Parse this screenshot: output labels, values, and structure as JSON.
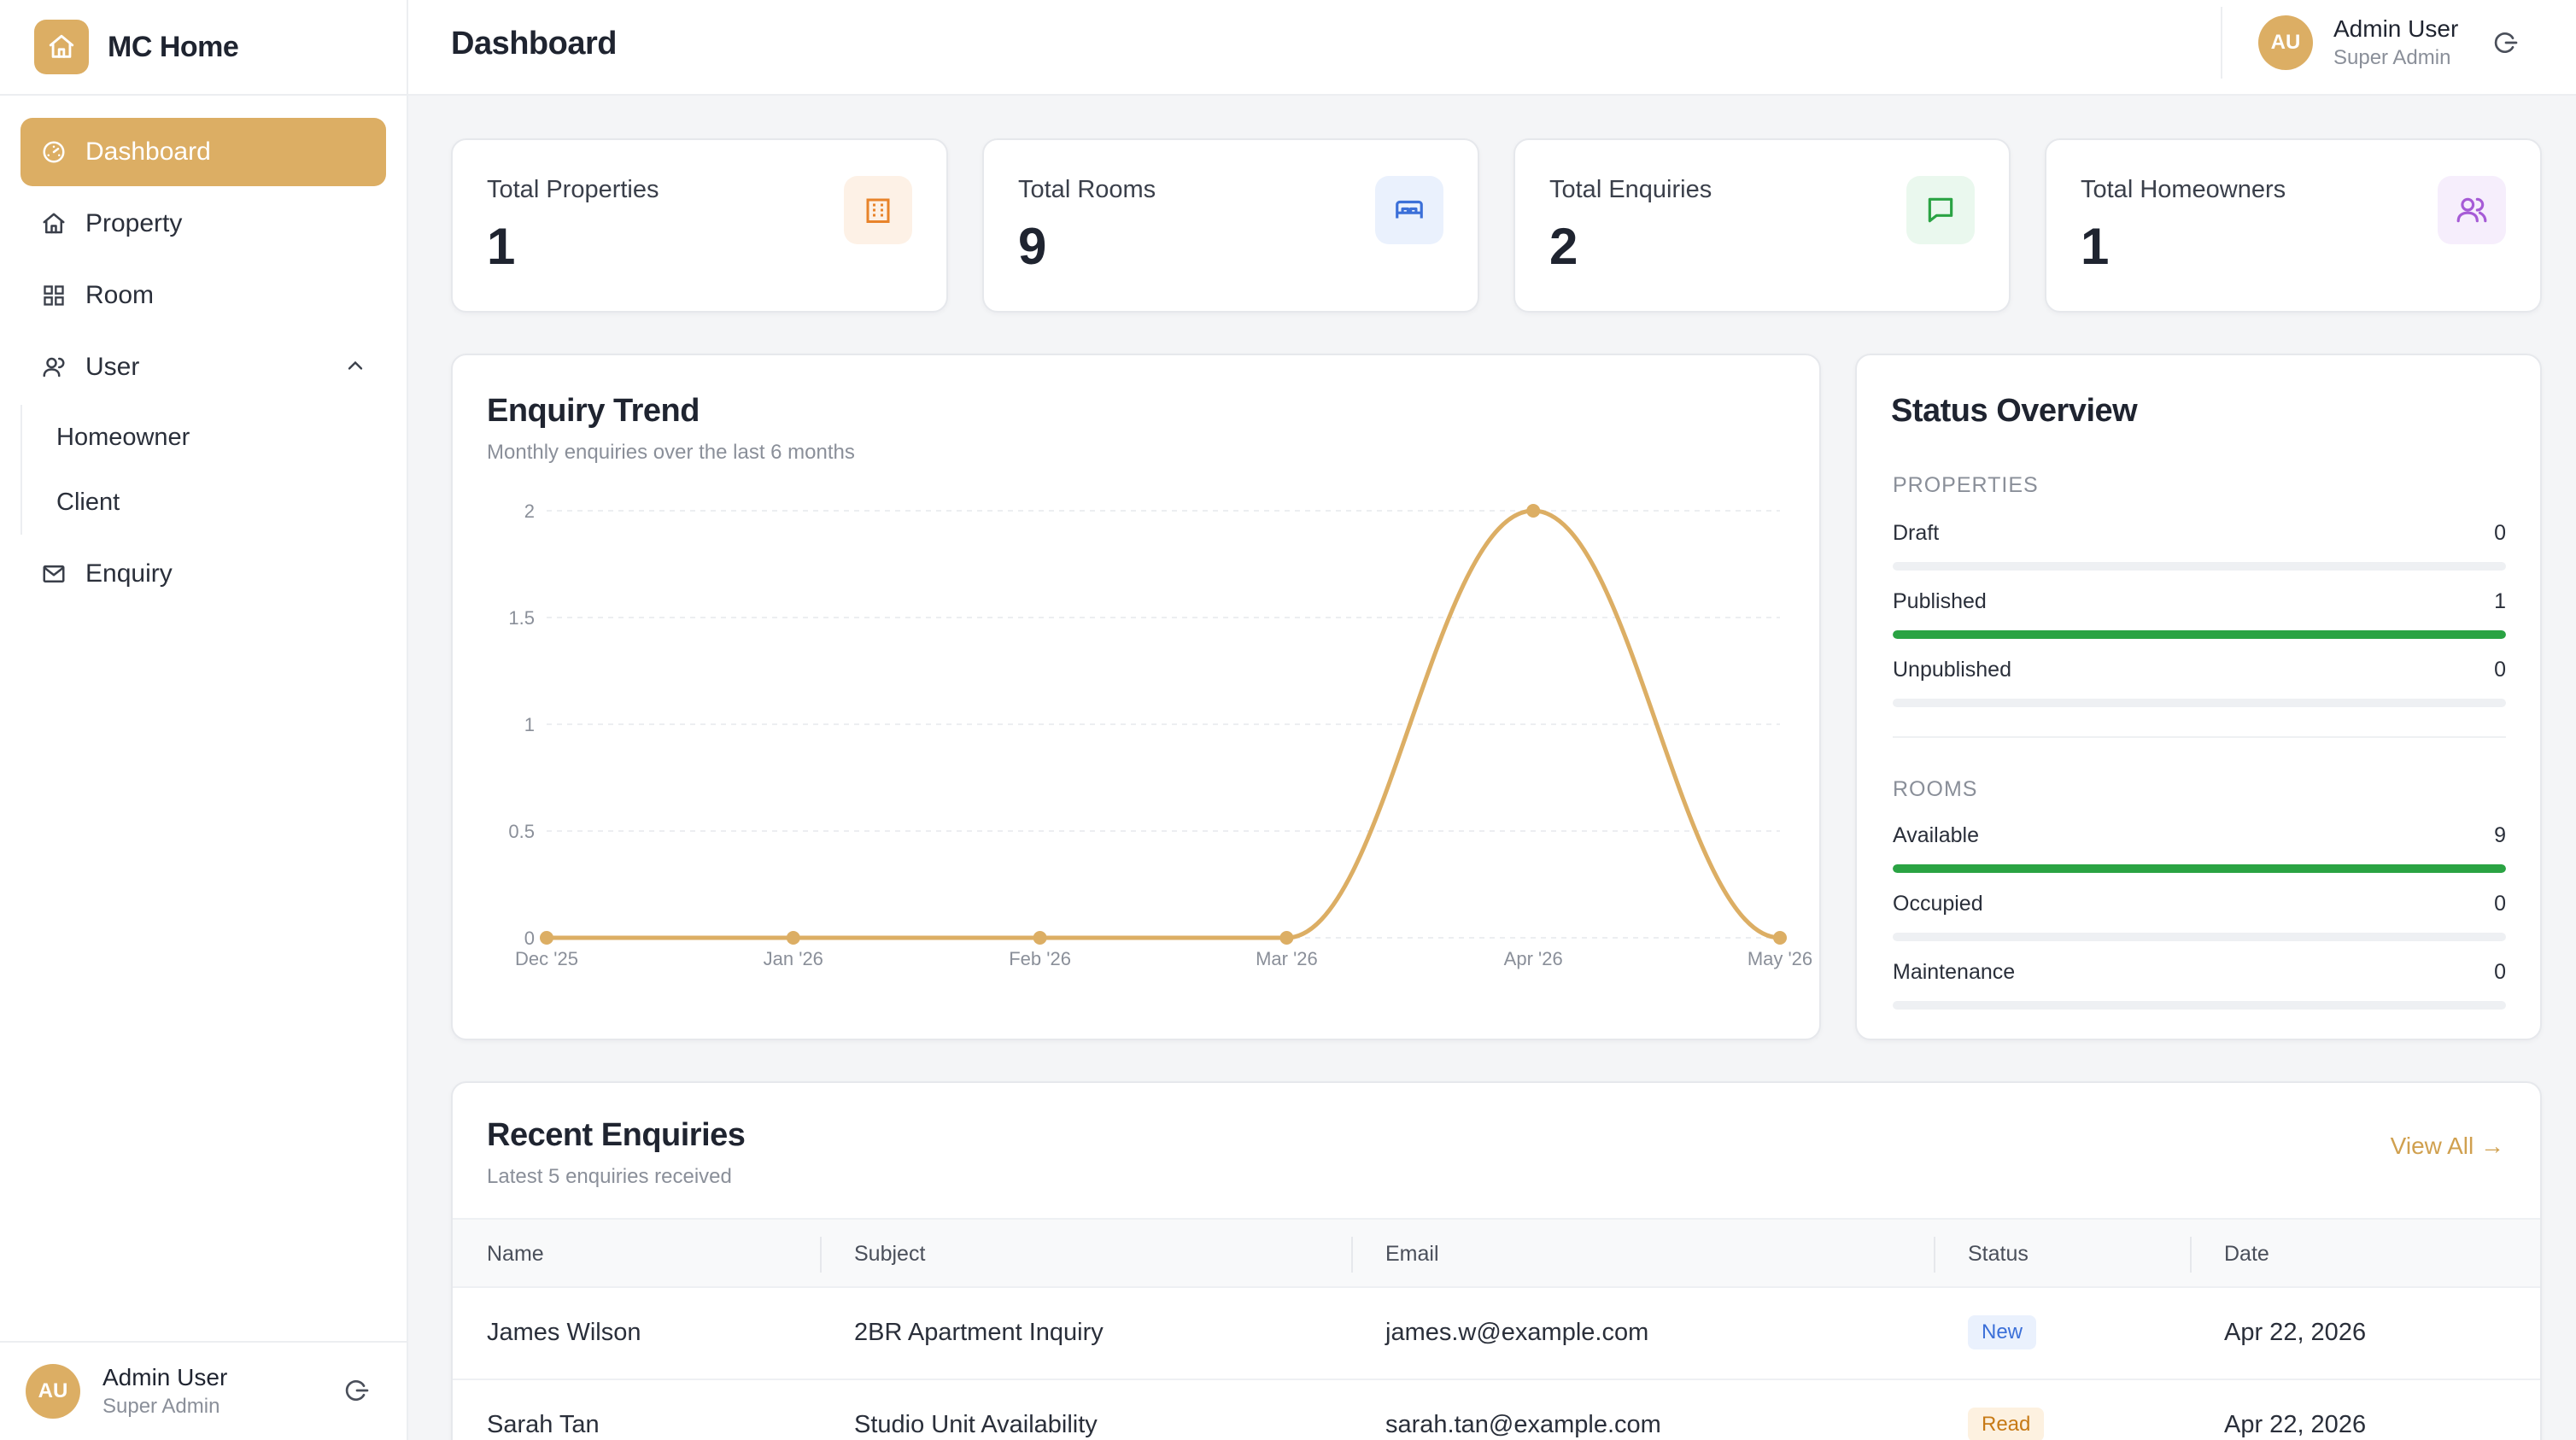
{
  "brand": {
    "name": "MC Home"
  },
  "sidebar": {
    "items": [
      {
        "label": "Dashboard",
        "icon": "dashboard-gauge-icon",
        "active": true
      },
      {
        "label": "Property",
        "icon": "house-icon"
      },
      {
        "label": "Room",
        "icon": "grid-icon"
      },
      {
        "label": "User",
        "icon": "users-icon",
        "expanded": true,
        "children": [
          {
            "label": "Homeowner"
          },
          {
            "label": "Client"
          }
        ]
      },
      {
        "label": "Enquiry",
        "icon": "mail-icon"
      }
    ],
    "user": {
      "initials": "AU",
      "name": "Admin User",
      "role": "Super Admin"
    }
  },
  "header": {
    "title": "Dashboard",
    "user": {
      "initials": "AU",
      "name": "Admin User",
      "role": "Super Admin"
    }
  },
  "stats": [
    {
      "label": "Total Properties",
      "value": "1",
      "icon": "building-icon",
      "color": "#e8832a",
      "bg": "#fdf1e6"
    },
    {
      "label": "Total Rooms",
      "value": "9",
      "icon": "bed-icon",
      "color": "#3b6fd8",
      "bg": "#eaf1fd"
    },
    {
      "label": "Total Enquiries",
      "value": "2",
      "icon": "message-icon",
      "color": "#2aa343",
      "bg": "#eaf8ee"
    },
    {
      "label": "Total Homeowners",
      "value": "1",
      "icon": "users-icon",
      "color": "#a65bd6",
      "bg": "#f6eefc"
    }
  ],
  "trend": {
    "title": "Enquiry Trend",
    "subtitle": "Monthly enquiries over the last 6 months",
    "chart_data": {
      "type": "line",
      "x": [
        "Dec '25",
        "Jan '26",
        "Feb '26",
        "Mar '26",
        "Apr '26",
        "May '26"
      ],
      "series": [
        {
          "values": [
            0,
            0,
            0,
            0,
            2,
            0
          ]
        }
      ],
      "ylim": [
        0,
        2
      ],
      "yticks": [
        "0",
        "0.5",
        "1",
        "1.5",
        "2"
      ],
      "line_color": "#dcae64",
      "grid": true
    }
  },
  "status": {
    "title": "Status Overview",
    "properties_label": "PROPERTIES",
    "properties": [
      {
        "label": "Draft",
        "value": "0",
        "fraction": 0
      },
      {
        "label": "Published",
        "value": "1",
        "fraction": 1
      },
      {
        "label": "Unpublished",
        "value": "0",
        "fraction": 0
      }
    ],
    "rooms_label": "ROOMS",
    "rooms": [
      {
        "label": "Available",
        "value": "9",
        "fraction": 1
      },
      {
        "label": "Occupied",
        "value": "0",
        "fraction": 0
      },
      {
        "label": "Maintenance",
        "value": "0",
        "fraction": 0
      }
    ],
    "fill_color": "#2aa343"
  },
  "recent": {
    "title": "Recent Enquiries",
    "subtitle": "Latest 5 enquiries received",
    "view_all": "View All →",
    "columns": [
      "Name",
      "Subject",
      "Email",
      "Status",
      "Date"
    ],
    "rows": [
      {
        "name": "James Wilson",
        "subject": "2BR Apartment Inquiry",
        "email": "james.w@example.com",
        "status": "New",
        "status_color": "#3b6fd8",
        "status_bg": "#eaf1fd",
        "date": "Apr 22, 2026"
      },
      {
        "name": "Sarah Tan",
        "subject": "Studio Unit Availability",
        "email": "sarah.tan@example.com",
        "status": "Read",
        "status_color": "#c77a16",
        "status_bg": "#fdf1e0",
        "date": "Apr 22, 2026"
      }
    ]
  }
}
